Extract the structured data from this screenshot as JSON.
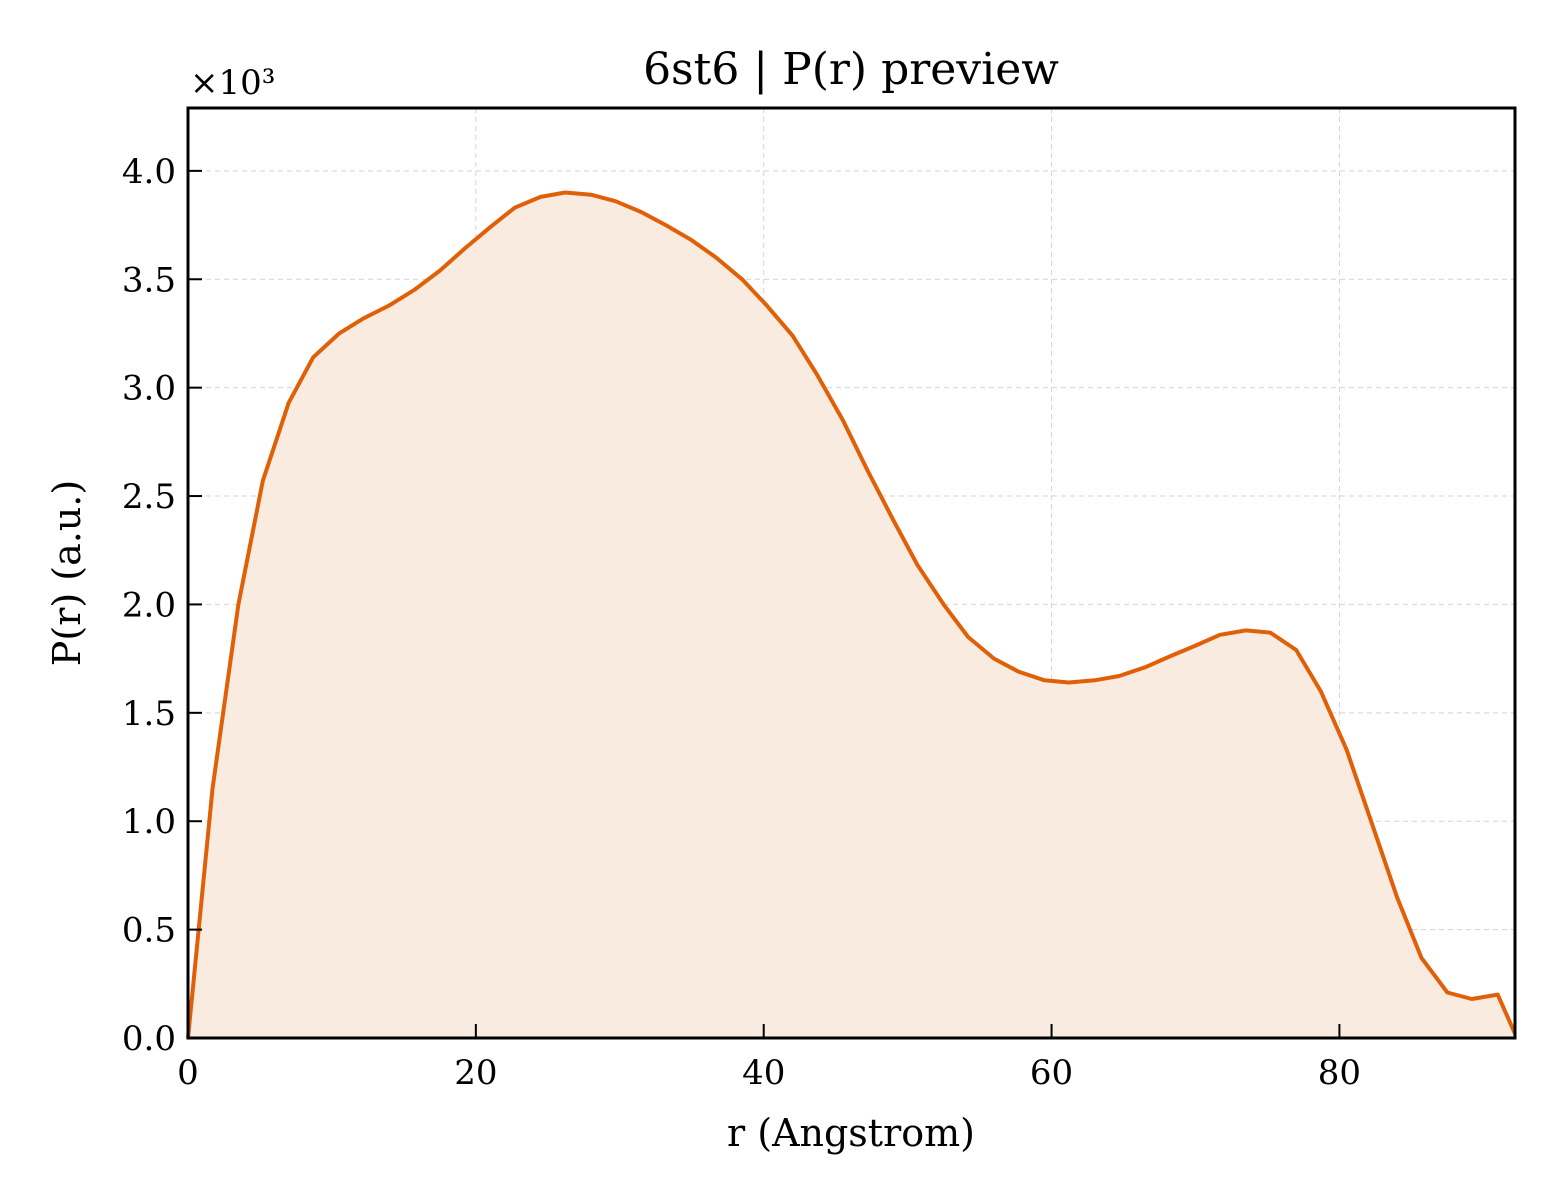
{
  "chart_data": {
    "type": "area",
    "title": "6st6 | P(r) preview",
    "xlabel": "r (Angstrom)",
    "ylabel": "P(r) (a.u.)",
    "y_multiplier_label": "×10³",
    "xlim": [
      0,
      92.2
    ],
    "ylim": [
      0,
      4.29
    ],
    "x_ticks": [
      0,
      20,
      40,
      60,
      80
    ],
    "x_tick_labels": [
      "0",
      "20",
      "40",
      "60",
      "80"
    ],
    "y_ticks": [
      0,
      0.5,
      1.0,
      1.5,
      2.0,
      2.5,
      3.0,
      3.5,
      4.0
    ],
    "y_tick_labels": [
      "0.0",
      "0.5",
      "1.0",
      "1.5",
      "2.0",
      "2.5",
      "3.0",
      "3.5",
      "4.0"
    ],
    "grid": true,
    "line_color": "#e06008",
    "fill_color": "#f9ebe0",
    "series": [
      {
        "x": [
          0,
          1.7,
          3.5,
          5.2,
          7.0,
          8.7,
          10.5,
          12.2,
          14.0,
          15.7,
          17.5,
          19.2,
          21.0,
          22.7,
          24.5,
          26.2,
          28.0,
          29.7,
          31.5,
          33.2,
          35.0,
          36.7,
          38.5,
          40.2,
          42.0,
          43.7,
          45.5,
          47.2,
          49.0,
          50.7,
          52.5,
          54.2,
          56.0,
          57.7,
          59.5,
          61.2,
          63.0,
          64.7,
          66.5,
          68.2,
          70.0,
          71.7,
          73.5,
          75.2,
          77.0,
          78.7,
          80.5,
          82.2,
          84.0,
          85.7,
          87.5,
          89.2,
          91.0,
          92.2
        ],
        "y": [
          0,
          1.15,
          2.0,
          2.57,
          2.93,
          3.14,
          3.25,
          3.32,
          3.38,
          3.45,
          3.54,
          3.64,
          3.74,
          3.83,
          3.88,
          3.9,
          3.89,
          3.86,
          3.81,
          3.75,
          3.68,
          3.6,
          3.5,
          3.38,
          3.24,
          3.06,
          2.85,
          2.62,
          2.39,
          2.18,
          2.0,
          1.85,
          1.75,
          1.69,
          1.65,
          1.64,
          1.65,
          1.67,
          1.71,
          1.76,
          1.81,
          1.86,
          1.88,
          1.87,
          1.79,
          1.6,
          1.33,
          1.0,
          0.65,
          0.37,
          0.21,
          0.18,
          0.2,
          0.02
        ]
      }
    ]
  }
}
